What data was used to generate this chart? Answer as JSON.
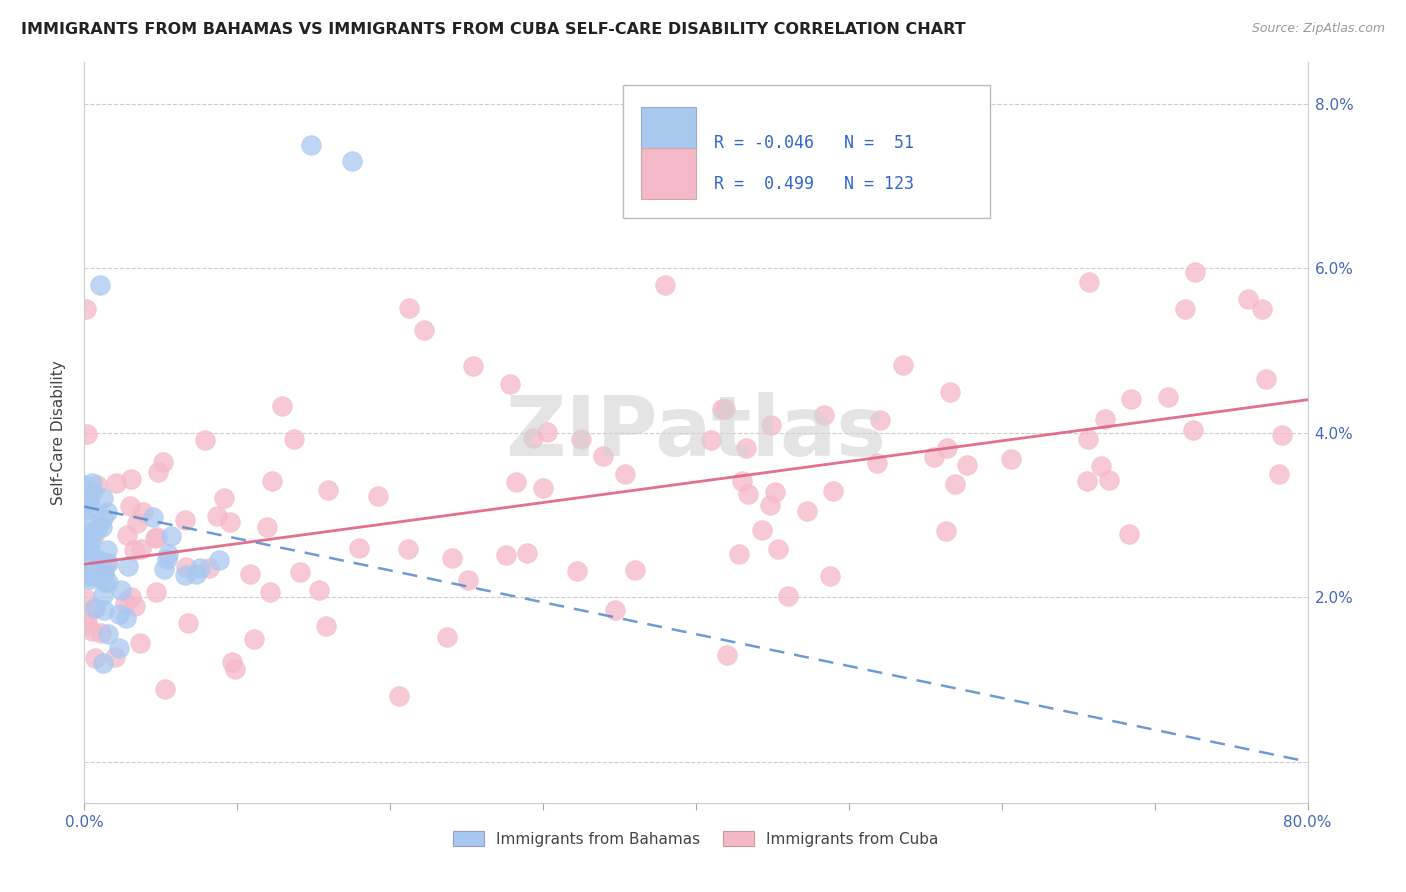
{
  "title": "IMMIGRANTS FROM BAHAMAS VS IMMIGRANTS FROM CUBA SELF-CARE DISABILITY CORRELATION CHART",
  "source": "Source: ZipAtlas.com",
  "ylabel": "Self-Care Disability",
  "bahamas_color": "#a8c8f0",
  "cuba_color": "#f5b8c8",
  "bahamas_line_color": "#5588cc",
  "cuba_line_color": "#e06080",
  "watermark": "ZIPatlas",
  "legend_r_bahamas": "-0.046",
  "legend_n_bahamas": "51",
  "legend_r_cuba": "0.499",
  "legend_n_cuba": "123",
  "xlim": [
    0.0,
    0.8
  ],
  "ylim": [
    0.0,
    0.08
  ],
  "x_tick_positions": [
    0.0,
    0.1,
    0.2,
    0.3,
    0.4,
    0.5,
    0.6,
    0.7,
    0.8
  ],
  "y_tick_positions": [
    0.0,
    0.02,
    0.04,
    0.06,
    0.08
  ],
  "y_tick_labels": [
    "",
    "2.0%",
    "4.0%",
    "6.0%",
    "8.0%"
  ],
  "bah_line_x0": 0.0,
  "bah_line_y0": 0.031,
  "bah_line_x1": 0.8,
  "bah_line_y1": 0.0,
  "cuba_line_x0": 0.0,
  "cuba_line_y0": 0.024,
  "cuba_line_x1": 0.8,
  "cuba_line_y1": 0.044
}
